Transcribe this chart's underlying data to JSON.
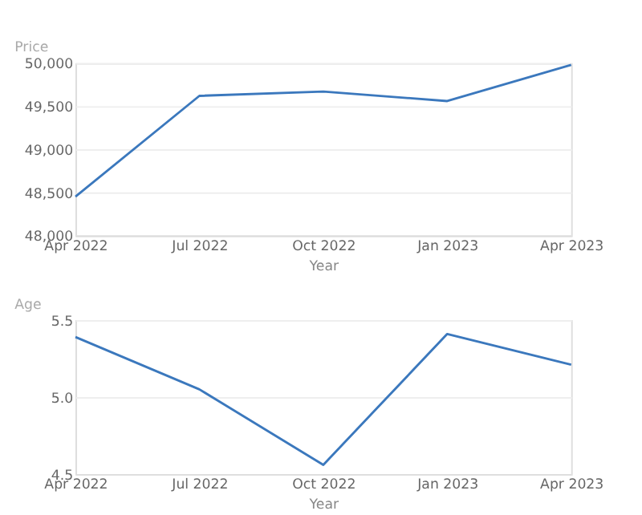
{
  "chart_data": [
    {
      "type": "line",
      "categories": [
        "Apr 2022",
        "Jul 2022",
        "Oct 2022",
        "Jan 2023",
        "Apr 2023"
      ],
      "xlabel": "Year",
      "ylabel": "Price",
      "ylim": [
        48000,
        50000
      ],
      "yticks": [
        {
          "value": 48000,
          "label": "48,000"
        },
        {
          "value": 48500,
          "label": "48,500"
        },
        {
          "value": 49000,
          "label": "49,000"
        },
        {
          "value": 49500,
          "label": "49,500"
        },
        {
          "value": 50000,
          "label": "50,000"
        }
      ],
      "grid": "y",
      "line_style": "solid",
      "marker": "none",
      "series": [
        {
          "color": "#3b78bd",
          "values": [
            48450,
            49620,
            49670,
            49560,
            49980
          ]
        }
      ]
    },
    {
      "type": "line",
      "categories": [
        "Apr 2022",
        "Jul 2022",
        "Oct 2022",
        "Jan 2023",
        "Apr 2023"
      ],
      "xlabel": "Year",
      "ylabel": "Age",
      "ylim": [
        4.5,
        5.5
      ],
      "yticks": [
        4.5,
        {
          "value": 5,
          "label": "5.0"
        },
        5.5
      ],
      "grid": "y",
      "line_style": "solid",
      "marker": "none",
      "series": [
        {
          "color": "#3b78bd",
          "values": [
            5.39,
            5.05,
            4.56,
            5.41,
            5.21
          ]
        }
      ]
    }
  ]
}
